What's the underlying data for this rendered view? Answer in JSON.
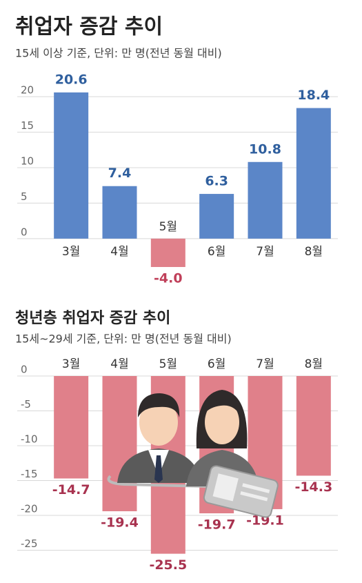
{
  "chart_data": [
    {
      "type": "bar",
      "title": "취업자 증감 추이",
      "subtitle": "15세 이상 기준, 단위: 만 명(전년 동월 대비)",
      "categories": [
        "3월",
        "4월",
        "5월",
        "6월",
        "7월",
        "8월"
      ],
      "values": [
        20.6,
        7.4,
        -4.0,
        6.3,
        10.8,
        18.4
      ],
      "value_labels": [
        "20.6",
        "7.4",
        "-4.0",
        "6.3",
        "10.8",
        "18.4"
      ],
      "colors": [
        "#5b86c8",
        "#5b86c8",
        "#e0808a",
        "#5b86c8",
        "#5b86c8",
        "#5b86c8"
      ],
      "value_label_colors": [
        "#2f5f9e",
        "#2f5f9e",
        "#c0405a",
        "#2f5f9e",
        "#2f5f9e",
        "#2f5f9e"
      ],
      "ylim": [
        -4,
        24
      ],
      "yticks": [
        0,
        5,
        10,
        15,
        20
      ],
      "grid": true
    },
    {
      "type": "bar",
      "title": "청년층 취업자 증감 추이",
      "subtitle": "15세~29세 기준, 단위: 만 명(전년 동월 대비)",
      "categories": [
        "3월",
        "4월",
        "5월",
        "6월",
        "7월",
        "8월"
      ],
      "values": [
        -14.7,
        -19.4,
        -25.5,
        -19.7,
        -19.1,
        -14.3
      ],
      "colors": [
        "#e0808a",
        "#e0808a",
        "#e0808a",
        "#e0808a",
        "#e0808a",
        "#e0808a"
      ],
      "value_label_colors": [
        "#a8324f",
        "#a8324f",
        "#a8324f",
        "#a8324f",
        "#a8324f",
        "#a8324f"
      ],
      "ylim": [
        -29.5,
        0
      ],
      "yticks": [
        0,
        -5,
        -10,
        -15,
        -20,
        -25
      ],
      "grid": true
    }
  ]
}
